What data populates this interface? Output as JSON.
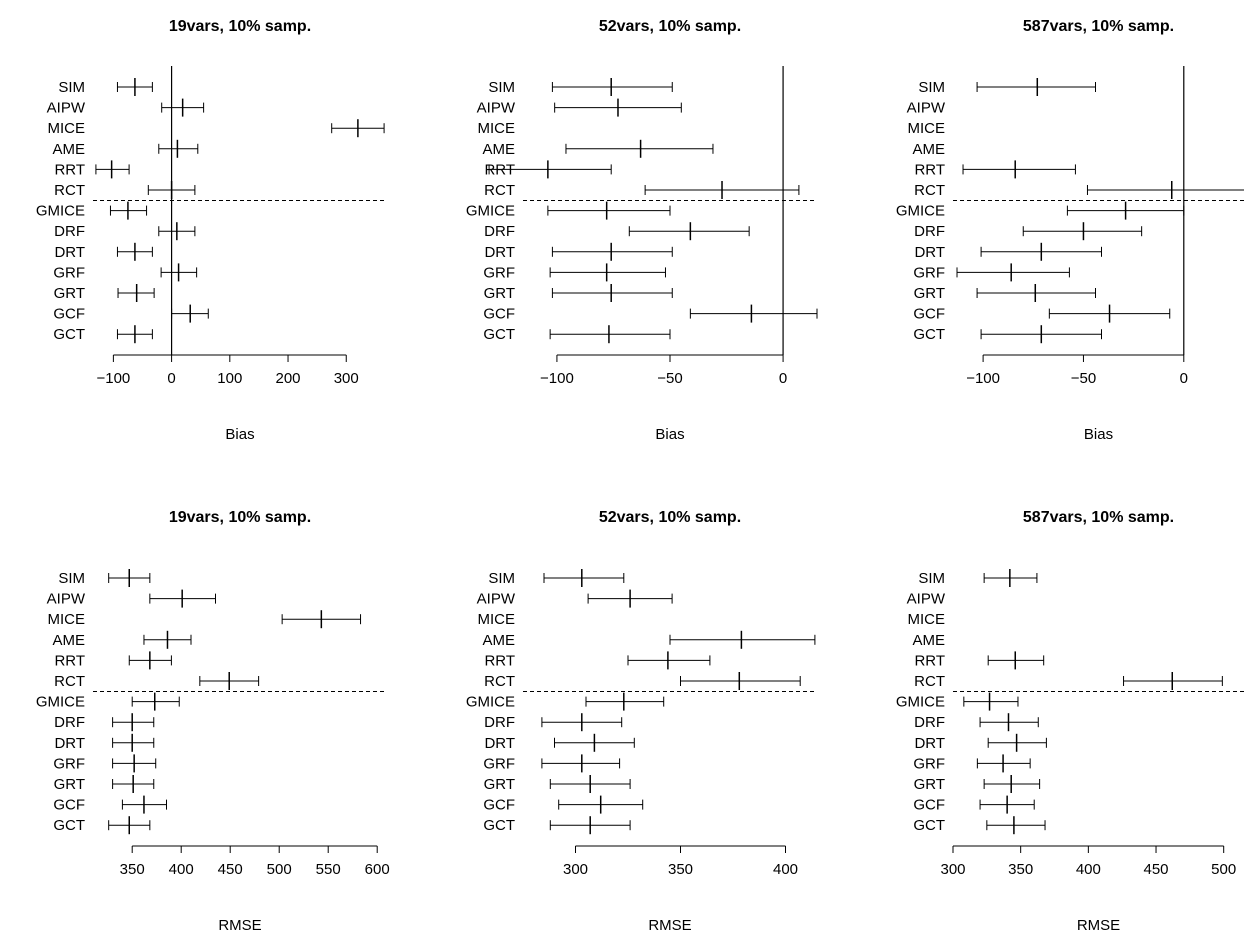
{
  "chart_data": [
    {
      "type": "forest",
      "title": "19vars, 10% samp.",
      "xlabel": "Bias",
      "xlim": [
        -135,
        370
      ],
      "xticks": [
        -100,
        0,
        100,
        200,
        300
      ],
      "xtick_labels": [
        "−100",
        "0",
        "100",
        "200",
        "300"
      ],
      "reference_line": 0,
      "methods": [
        "SIM",
        "AIPW",
        "MICE",
        "AME",
        "RRT",
        "RCT",
        "GMICE",
        "DRF",
        "DRT",
        "GRF",
        "GRT",
        "GCF",
        "GCT"
      ],
      "separator_after": "RCT",
      "points": [
        {
          "method": "SIM",
          "est": -63,
          "lo": -93,
          "hi": -33
        },
        {
          "method": "AIPW",
          "est": 19,
          "lo": -17,
          "hi": 55
        },
        {
          "method": "MICE",
          "est": 320,
          "lo": 275,
          "hi": 365
        },
        {
          "method": "AME",
          "est": 10,
          "lo": -22,
          "hi": 45
        },
        {
          "method": "RRT",
          "est": -103,
          "lo": -130,
          "hi": -73
        },
        {
          "method": "RCT",
          "est": 0,
          "lo": -40,
          "hi": 40
        },
        {
          "method": "GMICE",
          "est": -75,
          "lo": -105,
          "hi": -43
        },
        {
          "method": "DRF",
          "est": 9,
          "lo": -22,
          "hi": 40
        },
        {
          "method": "DRT",
          "est": -63,
          "lo": -93,
          "hi": -33
        },
        {
          "method": "GRF",
          "est": 12,
          "lo": -18,
          "hi": 43
        },
        {
          "method": "GRT",
          "est": -60,
          "lo": -92,
          "hi": -30
        },
        {
          "method": "GCF",
          "est": 32,
          "lo": 0,
          "hi": 63
        },
        {
          "method": "GCT",
          "est": -63,
          "lo": -93,
          "hi": -33
        }
      ]
    },
    {
      "type": "forest",
      "title": "52vars, 10% samp.",
      "xlabel": "Bias",
      "xlim": [
        -115,
        15
      ],
      "xticks": [
        -100,
        -50,
        0
      ],
      "xtick_labels": [
        "−100",
        "−50",
        "0"
      ],
      "reference_line": 0,
      "methods": [
        "SIM",
        "AIPW",
        "MICE",
        "AME",
        "RRT",
        "RCT",
        "GMICE",
        "DRF",
        "DRT",
        "GRF",
        "GRT",
        "GCF",
        "GCT"
      ],
      "separator_after": "RCT",
      "points": [
        {
          "method": "SIM",
          "est": -76,
          "lo": -102,
          "hi": -49
        },
        {
          "method": "AIPW",
          "est": -73,
          "lo": -101,
          "hi": -45
        },
        {
          "method": "AME",
          "est": -63,
          "lo": -96,
          "hi": -31
        },
        {
          "method": "RRT",
          "est": -104,
          "lo": -130,
          "hi": -76
        },
        {
          "method": "RCT",
          "est": -27,
          "lo": -61,
          "hi": 7
        },
        {
          "method": "GMICE",
          "est": -78,
          "lo": -104,
          "hi": -50
        },
        {
          "method": "DRF",
          "est": -41,
          "lo": -68,
          "hi": -15
        },
        {
          "method": "DRT",
          "est": -76,
          "lo": -102,
          "hi": -49
        },
        {
          "method": "GRF",
          "est": -78,
          "lo": -103,
          "hi": -52
        },
        {
          "method": "GRT",
          "est": -76,
          "lo": -102,
          "hi": -49
        },
        {
          "method": "GCF",
          "est": -14,
          "lo": -41,
          "hi": 15
        },
        {
          "method": "GCT",
          "est": -77,
          "lo": -103,
          "hi": -50
        }
      ]
    },
    {
      "type": "forest",
      "title": "587vars, 10% samp.",
      "xlabel": "Bias",
      "xlim": [
        -115,
        30
      ],
      "xticks": [
        -100,
        -50,
        0
      ],
      "xtick_labels": [
        "−100",
        "−50",
        "0"
      ],
      "reference_line": 0,
      "methods": [
        "SIM",
        "AIPW",
        "MICE",
        "AME",
        "RRT",
        "RCT",
        "GMICE",
        "DRF",
        "DRT",
        "GRF",
        "GRT",
        "GCF",
        "GCT"
      ],
      "separator_after": "RCT",
      "points": [
        {
          "method": "SIM",
          "est": -73,
          "lo": -103,
          "hi": -44
        },
        {
          "method": "RRT",
          "est": -84,
          "lo": -110,
          "hi": -54
        },
        {
          "method": "RCT",
          "est": -6,
          "lo": -48,
          "hi": 34
        },
        {
          "method": "GMICE",
          "est": -29,
          "lo": -58,
          "hi": 0
        },
        {
          "method": "DRF",
          "est": -50,
          "lo": -80,
          "hi": -21
        },
        {
          "method": "DRT",
          "est": -71,
          "lo": -101,
          "hi": -41
        },
        {
          "method": "GRF",
          "est": -86,
          "lo": -113,
          "hi": -57
        },
        {
          "method": "GRT",
          "est": -74,
          "lo": -103,
          "hi": -44
        },
        {
          "method": "GCF",
          "est": -37,
          "lo": -67,
          "hi": -7
        },
        {
          "method": "GCT",
          "est": -71,
          "lo": -101,
          "hi": -41
        }
      ]
    },
    {
      "type": "forest",
      "title": "19vars, 10% samp.",
      "xlabel": "RMSE",
      "xlim": [
        310,
        610
      ],
      "xticks": [
        350,
        400,
        450,
        500,
        550,
        600
      ],
      "xtick_labels": [
        "350",
        "400",
        "450",
        "500",
        "550",
        "600"
      ],
      "reference_line": null,
      "methods": [
        "SIM",
        "AIPW",
        "MICE",
        "AME",
        "RRT",
        "RCT",
        "GMICE",
        "DRF",
        "DRT",
        "GRF",
        "GRT",
        "GCF",
        "GCT"
      ],
      "separator_after": "RCT",
      "points": [
        {
          "method": "SIM",
          "est": 347,
          "lo": 326,
          "hi": 368
        },
        {
          "method": "AIPW",
          "est": 401,
          "lo": 368,
          "hi": 435
        },
        {
          "method": "MICE",
          "est": 543,
          "lo": 503,
          "hi": 583
        },
        {
          "method": "AME",
          "est": 386,
          "lo": 362,
          "hi": 410
        },
        {
          "method": "RRT",
          "est": 368,
          "lo": 347,
          "hi": 390
        },
        {
          "method": "RCT",
          "est": 449,
          "lo": 419,
          "hi": 479
        },
        {
          "method": "GMICE",
          "est": 373,
          "lo": 350,
          "hi": 398
        },
        {
          "method": "DRF",
          "est": 350,
          "lo": 330,
          "hi": 372
        },
        {
          "method": "DRT",
          "est": 350,
          "lo": 330,
          "hi": 372
        },
        {
          "method": "GRF",
          "est": 352,
          "lo": 330,
          "hi": 374
        },
        {
          "method": "GRT",
          "est": 351,
          "lo": 330,
          "hi": 372
        },
        {
          "method": "GCF",
          "est": 362,
          "lo": 340,
          "hi": 385
        },
        {
          "method": "GCT",
          "est": 347,
          "lo": 326,
          "hi": 368
        }
      ]
    },
    {
      "type": "forest",
      "title": "52vars, 10% samp.",
      "xlabel": "RMSE",
      "xlim": [
        275,
        415
      ],
      "xticks": [
        300,
        350,
        400
      ],
      "xtick_labels": [
        "300",
        "350",
        "400"
      ],
      "reference_line": null,
      "methods": [
        "SIM",
        "AIPW",
        "MICE",
        "AME",
        "RRT",
        "RCT",
        "GMICE",
        "DRF",
        "DRT",
        "GRF",
        "GRT",
        "GCF",
        "GCT"
      ],
      "separator_after": "RCT",
      "points": [
        {
          "method": "SIM",
          "est": 303,
          "lo": 285,
          "hi": 323
        },
        {
          "method": "AIPW",
          "est": 326,
          "lo": 306,
          "hi": 346
        },
        {
          "method": "AME",
          "est": 379,
          "lo": 345,
          "hi": 414
        },
        {
          "method": "RRT",
          "est": 344,
          "lo": 325,
          "hi": 364
        },
        {
          "method": "RCT",
          "est": 378,
          "lo": 350,
          "hi": 407
        },
        {
          "method": "GMICE",
          "est": 323,
          "lo": 305,
          "hi": 342
        },
        {
          "method": "DRF",
          "est": 303,
          "lo": 284,
          "hi": 322
        },
        {
          "method": "DRT",
          "est": 309,
          "lo": 290,
          "hi": 328
        },
        {
          "method": "GRF",
          "est": 303,
          "lo": 284,
          "hi": 321
        },
        {
          "method": "GRT",
          "est": 307,
          "lo": 288,
          "hi": 326
        },
        {
          "method": "GCF",
          "est": 312,
          "lo": 292,
          "hi": 332
        },
        {
          "method": "GCT",
          "est": 307,
          "lo": 288,
          "hi": 326
        }
      ]
    },
    {
      "type": "forest",
      "title": "587vars, 10% samp.",
      "xlabel": "RMSE",
      "xlim": [
        300,
        515
      ],
      "xticks": [
        300,
        350,
        400,
        450,
        500
      ],
      "xtick_labels": [
        "300",
        "350",
        "400",
        "450",
        "500"
      ],
      "reference_line": null,
      "methods": [
        "SIM",
        "AIPW",
        "MICE",
        "AME",
        "RRT",
        "RCT",
        "GMICE",
        "DRF",
        "DRT",
        "GRF",
        "GRT",
        "GCF",
        "GCT"
      ],
      "separator_after": "RCT",
      "points": [
        {
          "method": "SIM",
          "est": 342,
          "lo": 323,
          "hi": 362
        },
        {
          "method": "RRT",
          "est": 346,
          "lo": 326,
          "hi": 367
        },
        {
          "method": "RCT",
          "est": 462,
          "lo": 426,
          "hi": 499
        },
        {
          "method": "GMICE",
          "est": 327,
          "lo": 308,
          "hi": 348
        },
        {
          "method": "DRF",
          "est": 341,
          "lo": 320,
          "hi": 363
        },
        {
          "method": "DRT",
          "est": 347,
          "lo": 326,
          "hi": 369
        },
        {
          "method": "GRF",
          "est": 337,
          "lo": 318,
          "hi": 357
        },
        {
          "method": "GRT",
          "est": 343,
          "lo": 323,
          "hi": 364
        },
        {
          "method": "GCF",
          "est": 340,
          "lo": 320,
          "hi": 360
        },
        {
          "method": "GCT",
          "est": 345,
          "lo": 325,
          "hi": 368
        }
      ]
    }
  ]
}
